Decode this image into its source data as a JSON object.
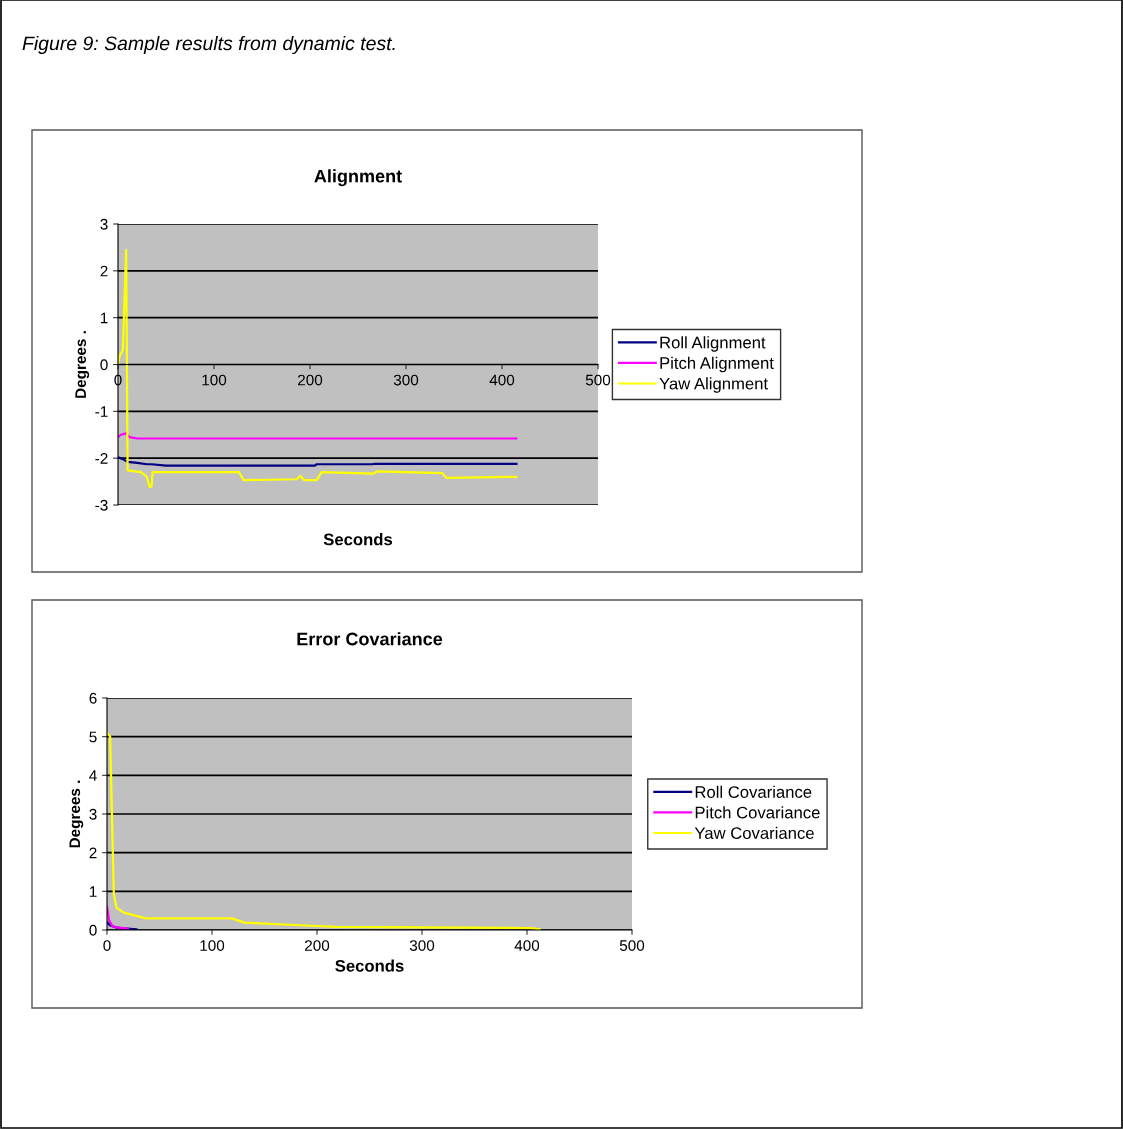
{
  "chart_data": [
    {
      "type": "line",
      "title": "Alignment",
      "xlabel": "Seconds",
      "ylabel": "Degrees .",
      "annotations": [
        "Figure 9: Sample results from dynamic test."
      ],
      "xlim": [
        0,
        500
      ],
      "xticks": [
        0,
        100,
        200,
        300,
        400,
        500
      ],
      "ylim": [
        -3,
        3
      ],
      "yticks": [
        -3,
        -2,
        -1,
        0,
        1,
        2,
        3
      ],
      "grid": "y",
      "legend": "right",
      "series": [
        {
          "name": "Roll Alignment",
          "color": "#000080",
          "x": [
            0,
            5,
            10,
            20,
            30,
            35,
            50,
            205,
            207,
            265,
            267,
            415
          ],
          "values": [
            -1.98,
            -2.02,
            -2.08,
            -2.1,
            -2.13,
            -2.13,
            -2.16,
            -2.16,
            -2.13,
            -2.13,
            -2.12,
            -2.12
          ]
        },
        {
          "name": "Pitch Alignment",
          "color": "#ff00ff",
          "x": [
            0,
            3,
            8,
            12,
            20,
            415
          ],
          "values": [
            -1.55,
            -1.5,
            -1.47,
            -1.55,
            -1.58,
            -1.58
          ]
        },
        {
          "name": "Yaw Alignment",
          "color": "#ffff00",
          "x": [
            0,
            2,
            5,
            8.5,
            10,
            24,
            30,
            33,
            35,
            36,
            126,
            131,
            186,
            190,
            194,
            207,
            212,
            266,
            270,
            338,
            342,
            415
          ],
          "values": [
            0,
            0.2,
            0.3,
            2.44,
            -2.26,
            -2.3,
            -2.4,
            -2.62,
            -2.6,
            -2.3,
            -2.3,
            -2.47,
            -2.45,
            -2.38,
            -2.47,
            -2.47,
            -2.3,
            -2.33,
            -2.28,
            -2.32,
            -2.42,
            -2.4
          ]
        }
      ]
    },
    {
      "type": "line",
      "title": "Error Covariance",
      "xlabel": "Seconds",
      "ylabel": "Degrees .",
      "xlim": [
        0,
        500
      ],
      "xticks": [
        0,
        100,
        200,
        300,
        400,
        500
      ],
      "ylim": [
        0,
        6
      ],
      "yticks": [
        0,
        1,
        2,
        3,
        4,
        5,
        6
      ],
      "grid": "y",
      "legend": "right",
      "series": [
        {
          "name": "Roll Covariance",
          "color": "#000080",
          "x": [
            0,
            3,
            8,
            15,
            28
          ],
          "values": [
            0.2,
            0.12,
            0.07,
            0.04,
            0.02
          ]
        },
        {
          "name": "Pitch Covariance",
          "color": "#ff00ff",
          "x": [
            0,
            2,
            5,
            10,
            20
          ],
          "values": [
            0.6,
            0.25,
            0.1,
            0.06,
            0.04
          ]
        },
        {
          "name": "Yaw Covariance",
          "color": "#ffff00",
          "x": [
            0,
            3,
            6.5,
            9,
            16,
            37,
            119,
            131,
            194,
            219,
            300,
            403,
            412
          ],
          "values": [
            5.1,
            5.0,
            0.92,
            0.58,
            0.45,
            0.3,
            0.3,
            0.19,
            0.11,
            0.08,
            0.07,
            0.05,
            0.02
          ]
        }
      ]
    }
  ]
}
